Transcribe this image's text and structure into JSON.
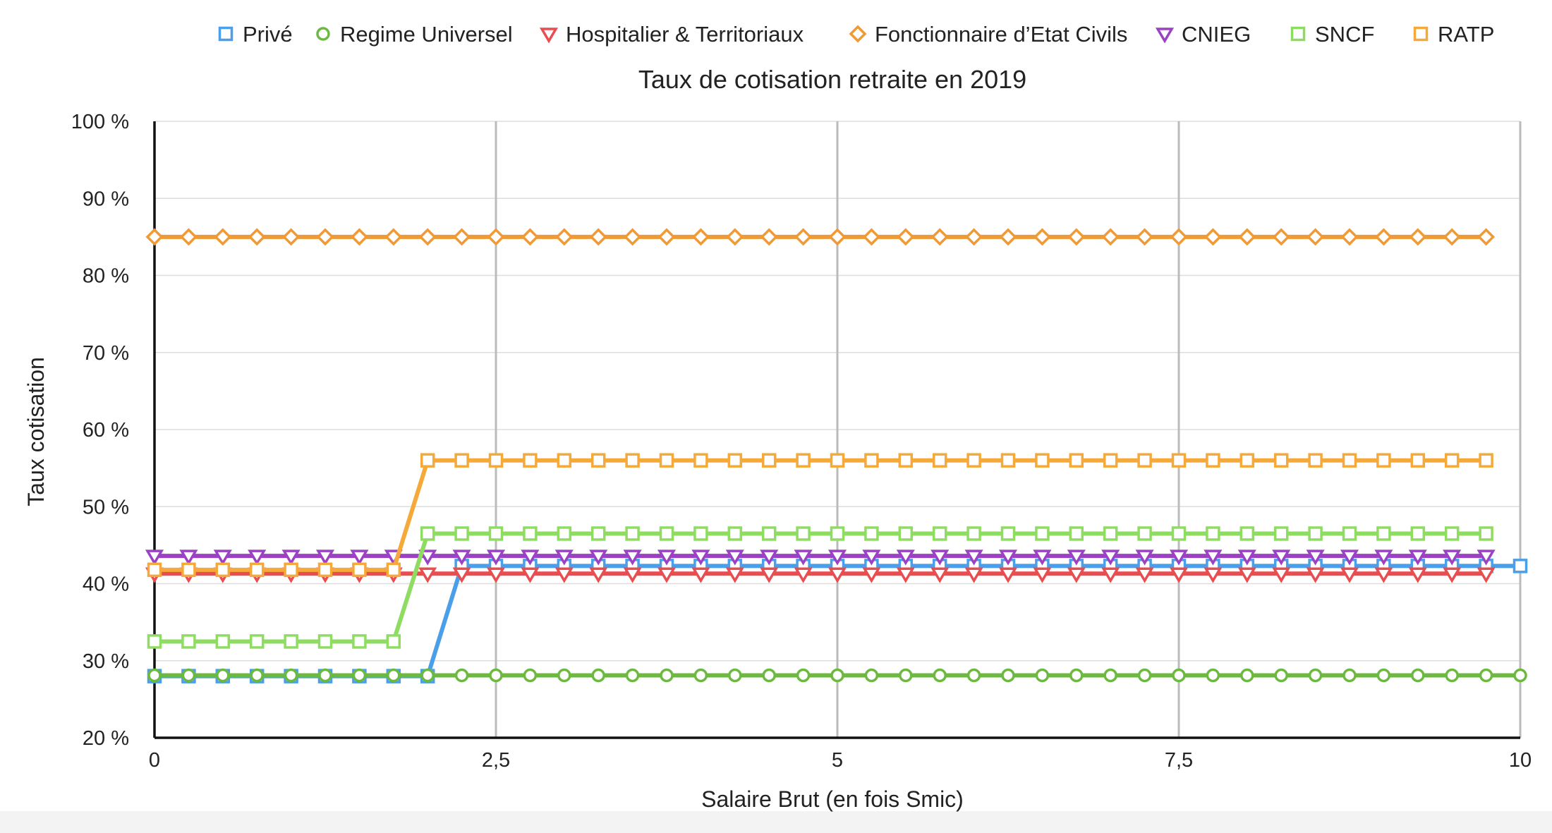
{
  "chart_data": {
    "type": "line",
    "title": "Taux de cotisation retraite en 2019",
    "xlabel": "Salaire Brut (en fois Smic)",
    "ylabel": "Taux cotisation",
    "xlim": [
      0,
      10
    ],
    "ylim": [
      20,
      100
    ],
    "xticks": [
      {
        "value": 0,
        "label": "0"
      },
      {
        "value": 2.5,
        "label": "2,5"
      },
      {
        "value": 5,
        "label": "5"
      },
      {
        "value": 7.5,
        "label": "7,5"
      },
      {
        "value": 10,
        "label": "10"
      }
    ],
    "yticks": [
      {
        "value": 20,
        "label": "20 %"
      },
      {
        "value": 30,
        "label": "30 %"
      },
      {
        "value": 40,
        "label": "40 %"
      },
      {
        "value": 50,
        "label": "50 %"
      },
      {
        "value": 60,
        "label": "60 %"
      },
      {
        "value": 70,
        "label": "70 %"
      },
      {
        "value": 80,
        "label": "80 %"
      },
      {
        "value": 90,
        "label": "90 %"
      },
      {
        "value": 100,
        "label": "100 %"
      }
    ],
    "grid": {
      "horizontal": true,
      "vertical_at_major_ticks": true
    },
    "legend_position": "top",
    "x_step": 0.25,
    "series": [
      {
        "name": "Privé",
        "color": "#4a9fe8",
        "marker": "square",
        "x_end": 10,
        "segments": [
          {
            "from": 0,
            "to": 2,
            "value": 28
          },
          {
            "from": 2.25,
            "to": 10,
            "value": 42.3
          }
        ]
      },
      {
        "name": "Regime Universel",
        "color": "#6cb93f",
        "marker": "circle",
        "x_end": 10,
        "segments": [
          {
            "from": 0,
            "to": 10,
            "value": 28.1
          }
        ]
      },
      {
        "name": "Hospitalier & Territoriaux",
        "color": "#ea4d4f",
        "marker": "triangle-down",
        "x_end": 9.75,
        "segments": [
          {
            "from": 0,
            "to": 9.75,
            "value": 41.3
          }
        ]
      },
      {
        "name": "Fonctionnaire d’Etat Civils",
        "color": "#f09a36",
        "marker": "diamond",
        "x_end": 9.75,
        "segments": [
          {
            "from": 0,
            "to": 9.75,
            "value": 85
          }
        ]
      },
      {
        "name": "CNIEG",
        "color": "#9b41c4",
        "marker": "triangle-down",
        "x_end": 9.75,
        "segments": [
          {
            "from": 0,
            "to": 9.75,
            "value": 43.6
          }
        ]
      },
      {
        "name": "SNCF",
        "color": "#8fdc62",
        "marker": "square",
        "x_end": 9.75,
        "segments": [
          {
            "from": 0,
            "to": 1.75,
            "value": 32.5
          },
          {
            "from": 2,
            "to": 9.75,
            "value": 46.5
          }
        ]
      },
      {
        "name": "RATP",
        "color": "#f5a93a",
        "marker": "square",
        "x_end": 9.75,
        "segments": [
          {
            "from": 0,
            "to": 1.75,
            "value": 41.8
          },
          {
            "from": 2,
            "to": 9.75,
            "value": 56
          }
        ]
      }
    ]
  }
}
